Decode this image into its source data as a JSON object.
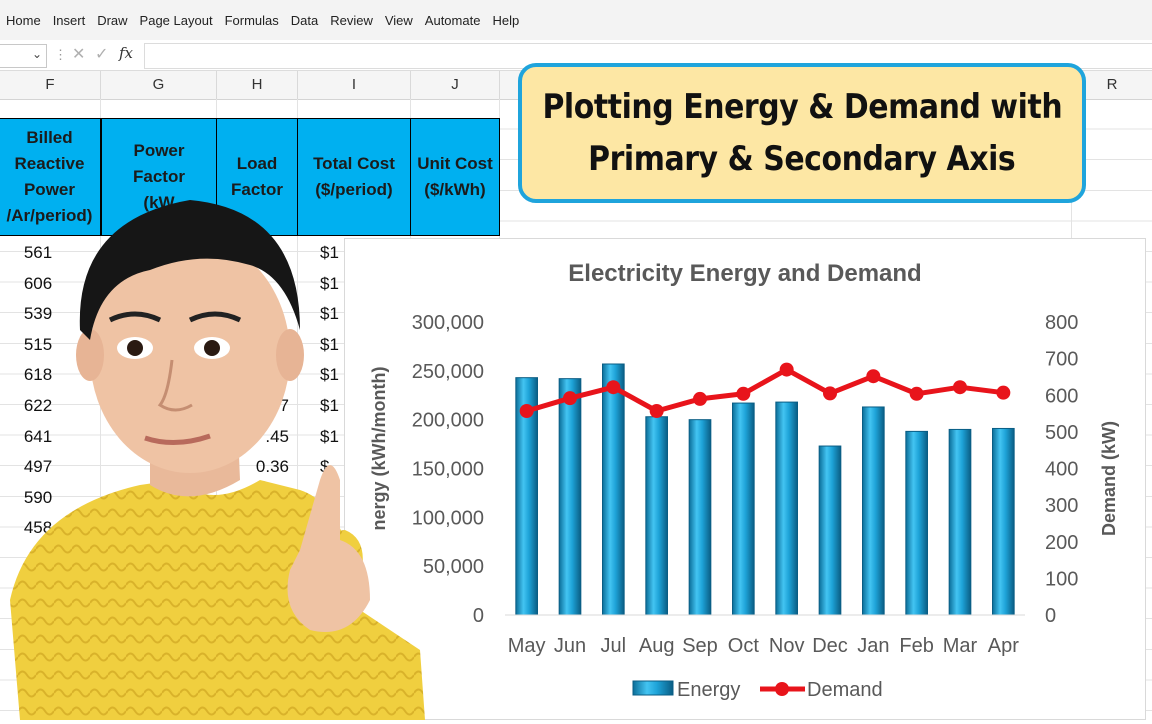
{
  "menu": [
    "Home",
    "Insert",
    "Draw",
    "Page Layout",
    "Formulas",
    "Data",
    "Review",
    "View",
    "Automate",
    "Help"
  ],
  "formula_bar": {
    "fx": "fx",
    "name_box": "",
    "content": ""
  },
  "columns": [
    "F",
    "G",
    "H",
    "I",
    "J",
    "R"
  ],
  "table_header": {
    "F": [
      "Billed",
      "Reactive",
      "Power",
      "/Ar/period)"
    ],
    "G": [
      "Power",
      "Factor",
      "(kW"
    ],
    "H": [
      "Load",
      "Factor"
    ],
    "I": [
      "Total Cost",
      "($/period)"
    ],
    "J": [
      "Unit Cost",
      "($/kWh)"
    ]
  },
  "col_F_values": [
    "561",
    "606",
    "539",
    "515",
    "618",
    "622",
    "641",
    "497",
    "590",
    "458"
  ],
  "col_I_values": [
    "$1",
    "$1",
    "$1",
    "$1",
    "$1",
    "$1",
    "$1",
    "$",
    "$1",
    ""
  ],
  "col_H_values": [
    "",
    "",
    "",
    "",
    "",
    "47",
    ".45",
    "0.36",
    "6",
    ""
  ],
  "title": [
    "Plotting Energy & Demand with",
    "Primary & Secondary Axis"
  ],
  "chart_data": {
    "type": "bar",
    "title": "Electricity Energy and Demand",
    "categories": [
      "May",
      "Jun",
      "Jul",
      "Aug",
      "Sep",
      "Oct",
      "Nov",
      "Dec",
      "Jan",
      "Feb",
      "Mar",
      "Apr"
    ],
    "series": [
      {
        "name": "Energy",
        "type": "bar",
        "axis": "primary",
        "color": "#1ea3d8",
        "values": [
          243000,
          242000,
          257000,
          203000,
          200000,
          217000,
          218000,
          173000,
          213000,
          188000,
          190000,
          191000
        ]
      },
      {
        "name": "Demand",
        "type": "line",
        "axis": "secondary",
        "color": "#e8141b",
        "values": [
          557,
          592,
          622,
          557,
          590,
          604,
          670,
          605,
          652,
          604,
          622,
          607
        ]
      }
    ],
    "ylabel": "Energy  (kWh/month)",
    "ylabel_visible": "nergy  (kWh/month)",
    "y2label": "Demand (kW)",
    "ylim": [
      0,
      300000
    ],
    "y2lim": [
      0,
      800
    ],
    "yticks": [
      "0",
      "50,000",
      "100,000",
      "150,000",
      "200,000",
      "250,000",
      "300,000"
    ],
    "y2ticks": [
      "0",
      "100",
      "200",
      "300",
      "400",
      "500",
      "600",
      "700",
      "800"
    ],
    "legend": "bottom",
    "grid": false
  },
  "icons": {
    "cancel": "close-icon",
    "enter": "check-icon",
    "dropdown": "chevron-down-icon"
  },
  "colors": {
    "header_fill": "#00b0f0",
    "title_fill": "#fde7a4",
    "title_border": "#1fa4dc"
  }
}
